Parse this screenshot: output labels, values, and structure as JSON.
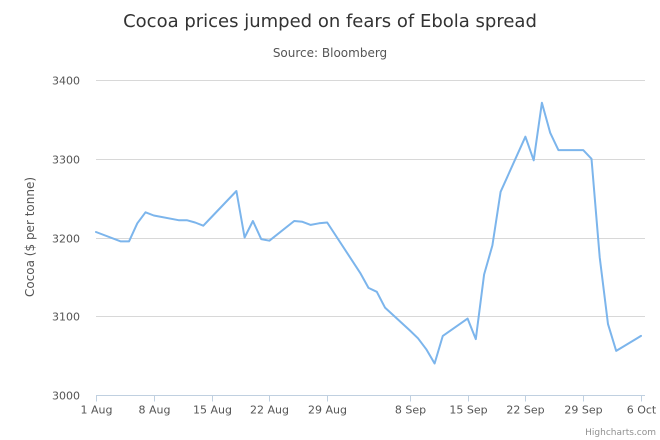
{
  "chart_data": {
    "type": "line",
    "title": "Cocoa prices jumped on fears of Ebola spread",
    "subtitle": "Source: Bloomberg",
    "xlabel": "",
    "ylabel": "Cocoa ($ per tonne)",
    "ylim": [
      3000,
      3400
    ],
    "yticks": [
      3000,
      3100,
      3200,
      3300,
      3400
    ],
    "xticks": [
      {
        "date": "2014-08-01",
        "label": "1 Aug"
      },
      {
        "date": "2014-08-08",
        "label": "8 Aug"
      },
      {
        "date": "2014-08-15",
        "label": "15 Aug"
      },
      {
        "date": "2014-08-22",
        "label": "22 Aug"
      },
      {
        "date": "2014-08-29",
        "label": "29 Aug"
      },
      {
        "date": "2014-09-08",
        "label": "8 Sep"
      },
      {
        "date": "2014-09-15",
        "label": "15 Sep"
      },
      {
        "date": "2014-09-22",
        "label": "22 Sep"
      },
      {
        "date": "2014-09-29",
        "label": "29 Sep"
      },
      {
        "date": "2014-10-06",
        "label": "6 Oct"
      }
    ],
    "grid": true,
    "series": [
      {
        "color": "#7cb5ec",
        "points": [
          [
            "2014-08-01",
            3207
          ],
          [
            "2014-08-04",
            3195
          ],
          [
            "2014-08-05",
            3195
          ],
          [
            "2014-08-06",
            3218
          ],
          [
            "2014-08-07",
            3232
          ],
          [
            "2014-08-08",
            3228
          ],
          [
            "2014-08-11",
            3222
          ],
          [
            "2014-08-12",
            3222
          ],
          [
            "2014-08-13",
            3219
          ],
          [
            "2014-08-14",
            3215
          ],
          [
            "2014-08-15",
            3226
          ],
          [
            "2014-08-18",
            3259
          ],
          [
            "2014-08-19",
            3200
          ],
          [
            "2014-08-20",
            3221
          ],
          [
            "2014-08-21",
            3198
          ],
          [
            "2014-08-22",
            3196
          ],
          [
            "2014-08-25",
            3221
          ],
          [
            "2014-08-26",
            3220
          ],
          [
            "2014-08-27",
            3216
          ],
          [
            "2014-08-28",
            3218
          ],
          [
            "2014-08-29",
            3219
          ],
          [
            "2014-09-02",
            3155
          ],
          [
            "2014-09-03",
            3136
          ],
          [
            "2014-09-04",
            3131
          ],
          [
            "2014-09-05",
            3111
          ],
          [
            "2014-09-08",
            3082
          ],
          [
            "2014-09-09",
            3072
          ],
          [
            "2014-09-10",
            3058
          ],
          [
            "2014-09-11",
            3040
          ],
          [
            "2014-09-12",
            3075
          ],
          [
            "2014-09-15",
            3097
          ],
          [
            "2014-09-16",
            3071
          ],
          [
            "2014-09-17",
            3153
          ],
          [
            "2014-09-18",
            3190
          ],
          [
            "2014-09-19",
            3258
          ],
          [
            "2014-09-22",
            3328
          ],
          [
            "2014-09-23",
            3298
          ],
          [
            "2014-09-24",
            3371
          ],
          [
            "2014-09-25",
            3333
          ],
          [
            "2014-09-26",
            3311
          ],
          [
            "2014-09-29",
            3311
          ],
          [
            "2014-09-30",
            3300
          ],
          [
            "2014-10-01",
            3175
          ],
          [
            "2014-10-02",
            3090
          ],
          [
            "2014-10-03",
            3056
          ],
          [
            "2014-10-06",
            3075
          ]
        ]
      }
    ]
  },
  "credits": "Highcharts.com"
}
